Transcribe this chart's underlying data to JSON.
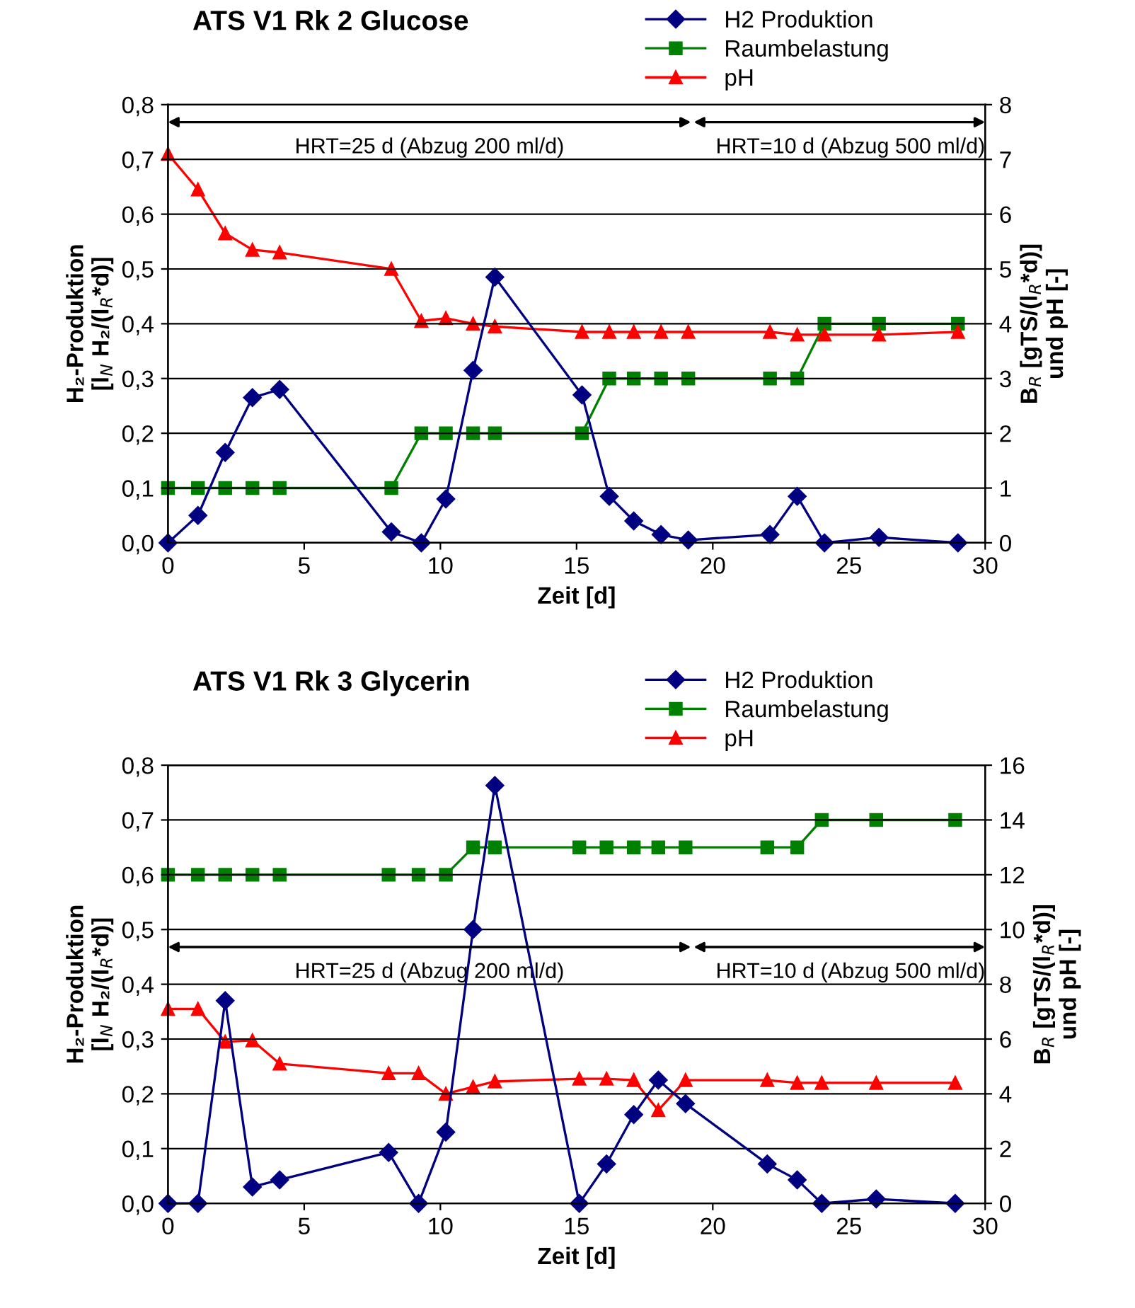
{
  "chart_data": [
    {
      "type": "line",
      "title": "ATS V1 Rk 2 Glucose",
      "xlabel": "Zeit [d]",
      "ylabel": "H₂-Produktion\n[l$_{N}$ H₂/(l$_{R}$*d)]",
      "y2label": "B$_{R}$ [gTS/(l$_{R}$*d)]\nund pH [-]",
      "annotations": [
        "HRT=25 d (Abzug 200 ml/d)",
        "HRT=10 d (Abzug 500 ml/d)"
      ],
      "x": [
        0,
        1.1,
        2.1,
        3.1,
        4.1,
        8.2,
        9.3,
        10.2,
        11.2,
        12,
        15.2,
        16.2,
        17.1,
        18.1,
        19.1,
        22.1,
        23.1,
        24.1,
        26.1,
        29
      ],
      "series": [
        {
          "name": "H2 Produktion",
          "color": "#000080",
          "marker": "diamond",
          "values": [
            0,
            0.05,
            0.165,
            0.265,
            0.28,
            0.02,
            0,
            0.08,
            0.315,
            0.485,
            0.27,
            0.085,
            0.04,
            0.015,
            0.005,
            0.015,
            0.085,
            0,
            0.01,
            0
          ]
        },
        {
          "name": "Raumbelastung",
          "color": "#008000",
          "marker": "square",
          "axis": "y2",
          "values": [
            1,
            1,
            1,
            1,
            1,
            1,
            2,
            2,
            2,
            2,
            2,
            3,
            3,
            3,
            3,
            3,
            3,
            4,
            4,
            4
          ]
        },
        {
          "name": "pH",
          "color": "#ff0000",
          "marker": "triangle",
          "axis": "y2",
          "values": [
            7.1,
            6.45,
            5.65,
            5.35,
            5.3,
            5.0,
            4.05,
            4.1,
            4.0,
            3.95,
            3.85,
            3.85,
            3.85,
            3.85,
            3.85,
            3.85,
            3.8,
            3.8,
            3.8,
            3.85
          ]
        }
      ],
      "xlim": [
        0,
        30
      ],
      "xticks": [
        0,
        5,
        10,
        15,
        20,
        25,
        30
      ],
      "ylim": [
        0,
        0.8
      ],
      "yticks": [
        {
          "value": 0,
          "label": "0,0"
        },
        {
          "value": 0.1,
          "label": "0,1"
        },
        {
          "value": 0.2,
          "label": "0,2"
        },
        {
          "value": 0.3,
          "label": "0,3"
        },
        {
          "value": 0.4,
          "label": "0,4"
        },
        {
          "value": 0.5,
          "label": "0,5"
        },
        {
          "value": 0.6,
          "label": "0,6"
        },
        {
          "value": 0.7,
          "label": "0,7"
        },
        {
          "value": 0.8,
          "label": "0,8"
        }
      ],
      "y2lim": [
        0,
        8
      ],
      "y2ticks": [
        0,
        1,
        2,
        3,
        4,
        5,
        6,
        7,
        8
      ],
      "grid": "y",
      "legend": "top right"
    },
    {
      "type": "line",
      "title": "ATS V1 Rk 3 Glycerin",
      "xlabel": "Zeit [d]",
      "ylabel": "H₂-Produktion\n[l$_{N}$ H₂/(l$_{R}$*d)]",
      "y2label": "B$_{R}$ [gTS/(l$_{R}$*d)]\nund pH [-]",
      "annotations": [
        "HRT=25 d (Abzug 200 ml/d)",
        "HRT=10 d (Abzug 500 ml/d)"
      ],
      "x": [
        0,
        1.1,
        2.1,
        3.1,
        4.1,
        8.1,
        9.2,
        10.2,
        11.2,
        12,
        15.1,
        16.1,
        17.1,
        18,
        19,
        22,
        23.1,
        24,
        26,
        28.9
      ],
      "series": [
        {
          "name": "H2 Produktion",
          "color": "#000080",
          "marker": "diamond",
          "values": [
            0,
            0,
            0.37,
            0.03,
            0.043,
            0.093,
            0,
            0.13,
            0.5,
            0.763,
            0,
            0.072,
            0.162,
            0.225,
            0.182,
            0.072,
            0.043,
            0,
            0.008,
            0
          ]
        },
        {
          "name": "Raumbelastung",
          "color": "#008000",
          "marker": "square",
          "axis": "y2",
          "values": [
            12,
            12,
            12,
            12,
            12,
            12,
            12,
            12,
            13,
            13,
            13,
            13,
            13,
            13,
            13,
            13,
            13,
            14,
            14,
            14
          ]
        },
        {
          "name": "pH",
          "color": "#ff0000",
          "marker": "triangle",
          "axis": "y2",
          "values": [
            7.1,
            7.1,
            5.9,
            5.95,
            5.1,
            4.75,
            4.75,
            4.0,
            4.25,
            4.45,
            4.55,
            4.55,
            4.5,
            3.4,
            4.5,
            4.5,
            4.4,
            4.4,
            4.4,
            4.4
          ]
        }
      ],
      "xlim": [
        0,
        30
      ],
      "xticks": [
        0,
        5,
        10,
        15,
        20,
        25,
        30
      ],
      "ylim": [
        0,
        0.8
      ],
      "yticks": [
        {
          "value": 0,
          "label": "0,0"
        },
        {
          "value": 0.1,
          "label": "0,1"
        },
        {
          "value": 0.2,
          "label": "0,2"
        },
        {
          "value": 0.3,
          "label": "0,3"
        },
        {
          "value": 0.4,
          "label": "0,4"
        },
        {
          "value": 0.5,
          "label": "0,5"
        },
        {
          "value": 0.6,
          "label": "0,6"
        },
        {
          "value": 0.7,
          "label": "0,7"
        },
        {
          "value": 0.8,
          "label": "0,8"
        }
      ],
      "y2lim": [
        0,
        16
      ],
      "y2ticks": [
        0,
        2,
        4,
        6,
        8,
        10,
        12,
        14,
        16
      ],
      "grid": "y",
      "legend": "top right"
    }
  ]
}
